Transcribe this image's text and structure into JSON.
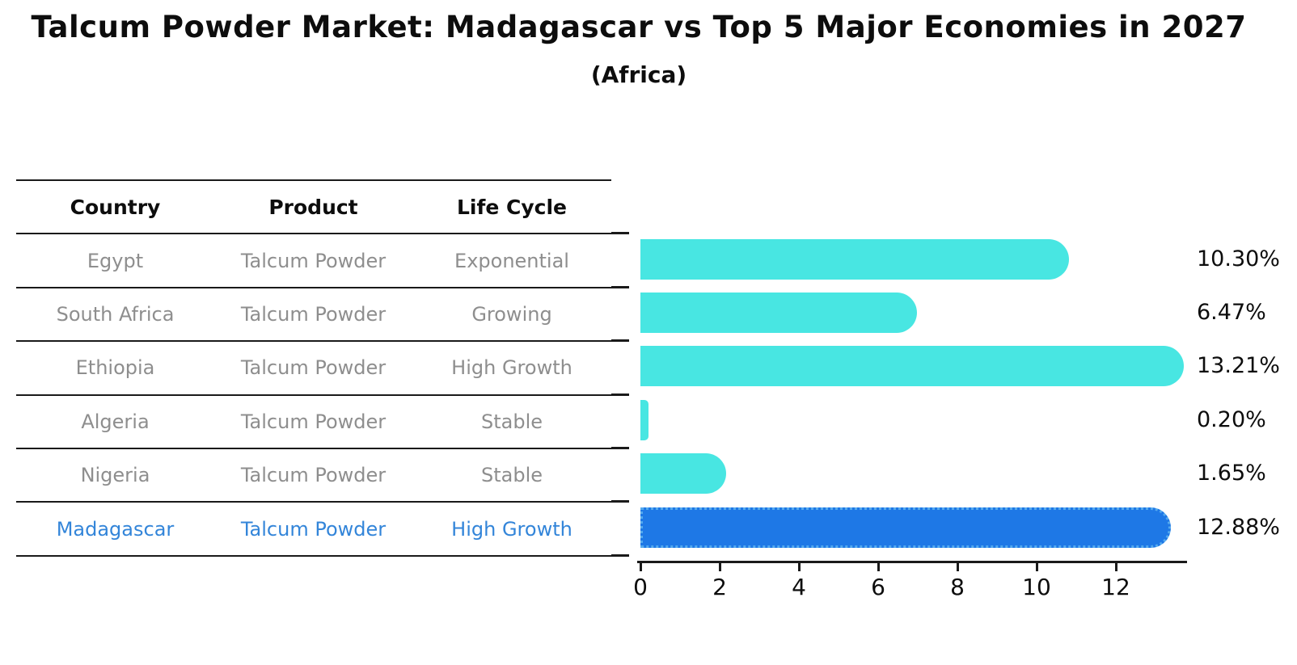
{
  "title": "Talcum Powder Market: Madagascar vs Top 5 Major Economies in 2027",
  "subtitle": "(Africa)",
  "table": {
    "columns": [
      "Country",
      "Product",
      "Life Cycle"
    ],
    "rows": [
      {
        "country": "Egypt",
        "product": "Talcum Powder",
        "life_cycle": "Exponential",
        "highlight": false
      },
      {
        "country": "South Africa",
        "product": "Talcum Powder",
        "life_cycle": "Growing",
        "highlight": false
      },
      {
        "country": "Ethiopia",
        "product": "Talcum Powder",
        "life_cycle": "High Growth",
        "highlight": false
      },
      {
        "country": "Algeria",
        "product": "Talcum Powder",
        "life_cycle": "Stable",
        "highlight": false
      },
      {
        "country": "Nigeria",
        "product": "Talcum Powder",
        "life_cycle": "Stable",
        "highlight": false
      },
      {
        "country": "Madagascar",
        "product": "Talcum Powder",
        "life_cycle": "High Growth",
        "highlight": true
      }
    ]
  },
  "chart_data": {
    "type": "bar",
    "orientation": "horizontal",
    "title": "Talcum Powder Market: Madagascar vs Top 5 Major Economies in 2027",
    "subtitle": "(Africa)",
    "categories": [
      "Egypt",
      "South Africa",
      "Ethiopia",
      "Algeria",
      "Nigeria",
      "Madagascar"
    ],
    "values": [
      10.3,
      6.47,
      13.21,
      0.2,
      1.65,
      12.88
    ],
    "value_labels": [
      "10.30%",
      "6.47%",
      "13.21%",
      "0.20%",
      "1.65%",
      "12.88%"
    ],
    "highlight_index": 5,
    "x_ticks": [
      0,
      2,
      4,
      6,
      8,
      10,
      12
    ],
    "x_tick_labels": [
      "0",
      "2",
      "4",
      "6",
      "8",
      "10",
      "12"
    ],
    "xlim": [
      0,
      13.8
    ],
    "grid": false,
    "legend": false,
    "colors": {
      "bar_default": "#48E6E2",
      "bar_highlight": "#1E78E6",
      "bar_highlight_border": "#55AAEE",
      "table_text_muted": "#8E8E8E",
      "table_text_highlight": "#3385D9",
      "text": "#0D0D0D"
    }
  }
}
